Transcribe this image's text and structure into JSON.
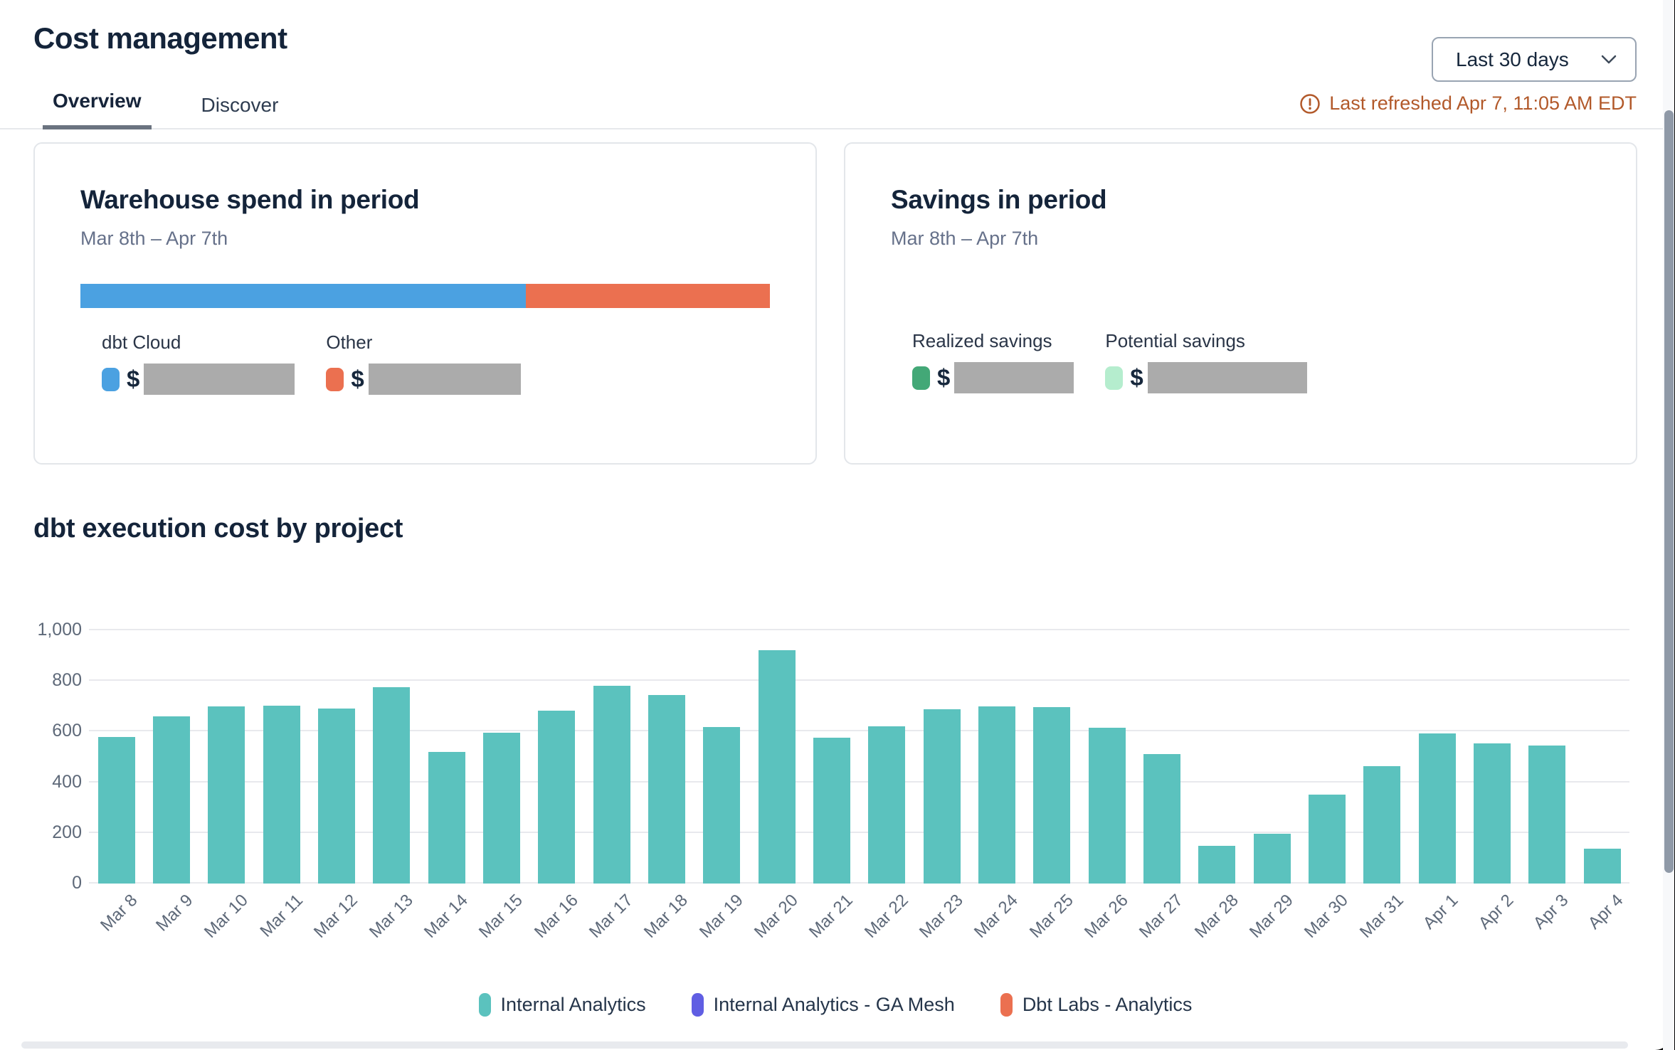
{
  "header": {
    "title": "Cost management",
    "tabs": [
      {
        "label": "Overview",
        "active": true
      },
      {
        "label": "Discover",
        "active": false
      }
    ],
    "period_selector": {
      "value": "Last 30 days"
    },
    "last_refreshed": "Last refreshed Apr 7, 11:05 AM EDT",
    "refresh_color": "#b2592a"
  },
  "cards": {
    "warehouse_spend": {
      "title": "Warehouse spend in period",
      "subtitle": "Mar 8th – Apr 7th",
      "segments": [
        {
          "label": "dbt Cloud",
          "color": "#4BA1E1",
          "percent": 64.6,
          "currency_prefix": "$",
          "value_redacted": true
        },
        {
          "label": "Other",
          "color": "#EB7050",
          "percent": 35.4,
          "currency_prefix": "$",
          "value_redacted": true
        }
      ]
    },
    "savings": {
      "title": "Savings in period",
      "subtitle": "Mar 8th – Apr 7th",
      "items": [
        {
          "label": "Realized savings",
          "color": "#43A877",
          "currency_prefix": "$",
          "value_redacted": true
        },
        {
          "label": "Potential savings",
          "color": "#B5EDCE",
          "currency_prefix": "$",
          "value_redacted": true
        }
      ]
    }
  },
  "chart_section": {
    "title": "dbt execution cost by project"
  },
  "chart_data": {
    "type": "bar",
    "title": "dbt execution cost by project",
    "categories": [
      "Mar 8",
      "Mar 9",
      "Mar 10",
      "Mar 11",
      "Mar 12",
      "Mar 13",
      "Mar 14",
      "Mar 15",
      "Mar 16",
      "Mar 17",
      "Mar 18",
      "Mar 19",
      "Mar 20",
      "Mar 21",
      "Mar 22",
      "Mar 23",
      "Mar 24",
      "Mar 25",
      "Mar 26",
      "Mar 27",
      "Mar 28",
      "Mar 29",
      "Mar 30",
      "Mar 31",
      "Apr 1",
      "Apr 2",
      "Apr 3",
      "Apr 4"
    ],
    "series": [
      {
        "name": "Internal Analytics",
        "values": [
          580,
          660,
          700,
          703,
          690,
          775,
          520,
          595,
          683,
          780,
          744,
          618,
          920,
          575,
          622,
          688,
          700,
          698,
          615,
          512,
          148,
          198,
          352,
          463,
          592,
          553,
          545,
          138
        ]
      }
    ],
    "bar_color": "#5BC2BE",
    "xlabel": "",
    "ylabel": "",
    "ylim": [
      0,
      1000
    ],
    "yticks": [
      {
        "value": 0,
        "label": "0"
      },
      {
        "value": 200,
        "label": "200"
      },
      {
        "value": 400,
        "label": "400"
      },
      {
        "value": 600,
        "label": "600"
      },
      {
        "value": 800,
        "label": "800"
      },
      {
        "value": 1000,
        "label": "1,000"
      }
    ],
    "grid": true,
    "legend_position": "bottom",
    "legend": [
      {
        "label": "Internal Analytics",
        "color": "#5BC2BE"
      },
      {
        "label": "Internal Analytics - GA Mesh",
        "color": "#605EE3"
      },
      {
        "label": "Dbt Labs - Analytics",
        "color": "#EB7050"
      }
    ]
  }
}
